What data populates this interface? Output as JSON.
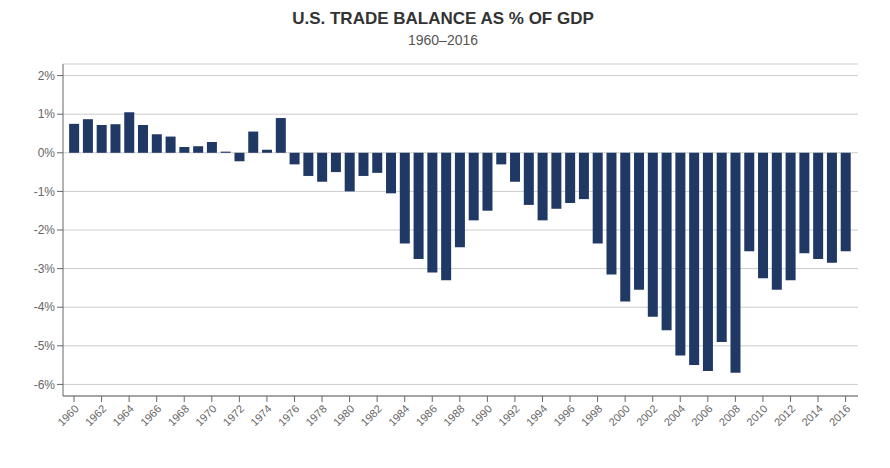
{
  "chart_data": {
    "type": "bar",
    "title": "U.S. TRADE BALANCE AS % OF GDP",
    "subtitle": "1960–2016",
    "color": "#1f3864",
    "x": [
      1960,
      1961,
      1962,
      1963,
      1964,
      1965,
      1966,
      1967,
      1968,
      1969,
      1970,
      1971,
      1972,
      1973,
      1974,
      1975,
      1976,
      1977,
      1978,
      1979,
      1980,
      1981,
      1982,
      1983,
      1984,
      1985,
      1986,
      1987,
      1988,
      1989,
      1990,
      1991,
      1992,
      1993,
      1994,
      1995,
      1996,
      1997,
      1998,
      1999,
      2000,
      2001,
      2002,
      2003,
      2004,
      2005,
      2006,
      2007,
      2008,
      2009,
      2010,
      2011,
      2012,
      2013,
      2014,
      2015,
      2016
    ],
    "values": [
      0.75,
      0.87,
      0.72,
      0.74,
      1.05,
      0.72,
      0.48,
      0.42,
      0.15,
      0.17,
      0.28,
      0.03,
      -0.22,
      0.55,
      0.08,
      0.9,
      -0.3,
      -0.6,
      -0.75,
      -0.5,
      -1.0,
      -0.6,
      -0.52,
      -1.05,
      -2.35,
      -2.75,
      -3.1,
      -3.3,
      -2.45,
      -1.75,
      -1.5,
      -0.3,
      -0.75,
      -1.35,
      -1.75,
      -1.45,
      -1.3,
      -1.2,
      -2.35,
      -3.15,
      -3.85,
      -3.55,
      -4.25,
      -4.6,
      -5.25,
      -5.5,
      -5.65,
      -4.9,
      -5.7,
      -2.55,
      -3.25,
      -3.55,
      -3.3,
      -2.6,
      -2.75,
      -2.85,
      -2.55
    ],
    "xlim": [
      1959.2,
      2016.9
    ],
    "xticks": [
      1960,
      1962,
      1964,
      1966,
      1968,
      1970,
      1972,
      1974,
      1976,
      1978,
      1980,
      1982,
      1984,
      1986,
      1988,
      1990,
      1992,
      1994,
      1996,
      1998,
      2000,
      2002,
      2004,
      2006,
      2008,
      2010,
      2012,
      2014,
      2016
    ],
    "ylim": [
      -6.3,
      2.3
    ],
    "yticks": [
      {
        "value": -6,
        "label": "-6%"
      },
      {
        "value": -5,
        "label": "-5%"
      },
      {
        "value": -4,
        "label": "-4%"
      },
      {
        "value": -3,
        "label": "-3%"
      },
      {
        "value": -2,
        "label": "-2%"
      },
      {
        "value": -1,
        "label": "-1%"
      },
      {
        "value": 0,
        "label": "0%"
      },
      {
        "value": 1,
        "label": "1%"
      },
      {
        "value": 2,
        "label": "2%"
      }
    ],
    "grid": true
  }
}
